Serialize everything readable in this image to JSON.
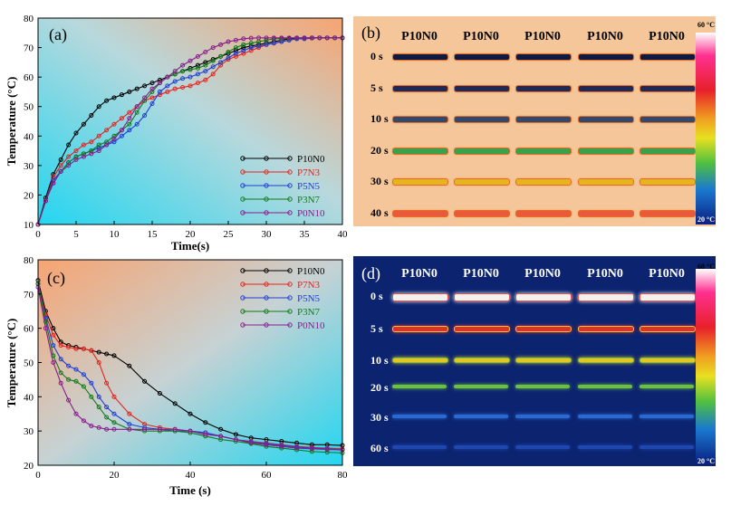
{
  "chart_data": [
    {
      "type": "line",
      "panel_label": "(a)",
      "xlabel": "Time(s)",
      "ylabel": "Temperature (°C)",
      "xlim": [
        0,
        40
      ],
      "ylim": [
        10,
        80
      ],
      "xticks": [
        0,
        5,
        10,
        15,
        20,
        25,
        30,
        35,
        40
      ],
      "yticks": [
        10,
        20,
        30,
        40,
        50,
        60,
        70,
        80
      ],
      "legend_position": "lower-right",
      "background": "gradient cyan (bottom-left) to orange (top-right)",
      "series": [
        {
          "name": "P10N0",
          "color": "#000000",
          "x": [
            0,
            1,
            2,
            3,
            4,
            5,
            6,
            7,
            8,
            9,
            10,
            11,
            12,
            13,
            14,
            15,
            16,
            17,
            18,
            19,
            20,
            21,
            22,
            23,
            24,
            25,
            26,
            27,
            28,
            29,
            30,
            31,
            32,
            33,
            34,
            35,
            36,
            37,
            38,
            39,
            40
          ],
          "y": [
            10,
            19,
            27,
            32,
            37,
            41,
            44,
            47,
            50,
            52,
            53,
            54,
            55,
            56,
            57,
            58,
            59,
            60,
            61,
            62,
            63,
            64,
            65,
            66,
            67,
            68,
            69,
            70,
            70.5,
            71,
            71.5,
            72,
            72.5,
            73,
            73,
            73.2,
            73.3,
            73.3,
            73.3,
            73.3,
            73.3
          ]
        },
        {
          "name": "P7N3",
          "color": "#e8221b",
          "x": [
            0,
            1,
            2,
            3,
            4,
            5,
            6,
            7,
            8,
            9,
            10,
            11,
            12,
            13,
            14,
            15,
            16,
            17,
            18,
            19,
            20,
            21,
            22,
            23,
            24,
            25,
            26,
            27,
            28,
            29,
            30,
            31,
            32,
            33,
            34,
            35,
            36,
            37,
            38,
            39,
            40
          ],
          "y": [
            10,
            18,
            26,
            30,
            33,
            35,
            37,
            38,
            40,
            42,
            44,
            46,
            48,
            50,
            52,
            53,
            54,
            55,
            56,
            56.5,
            57,
            58,
            59,
            61,
            64,
            66,
            67,
            68,
            69,
            70,
            71,
            71.5,
            72,
            72.5,
            73,
            73,
            73.2,
            73.3,
            73.3,
            73.3,
            73.3
          ]
        },
        {
          "name": "P5N5",
          "color": "#1f3fd1",
          "x": [
            0,
            1,
            2,
            3,
            4,
            5,
            6,
            7,
            8,
            9,
            10,
            11,
            12,
            13,
            14,
            15,
            16,
            17,
            18,
            19,
            20,
            21,
            22,
            23,
            24,
            25,
            26,
            27,
            28,
            29,
            30,
            31,
            32,
            33,
            34,
            35,
            36,
            37,
            38,
            39,
            40
          ],
          "y": [
            10,
            18,
            25,
            28,
            31,
            33,
            34,
            35,
            36,
            37,
            38,
            40,
            42,
            44,
            47,
            51,
            55,
            57,
            58.5,
            59.5,
            60,
            61,
            62,
            63.5,
            65,
            66.5,
            68,
            69,
            70,
            70.5,
            71,
            71.5,
            72,
            72.5,
            73,
            73,
            73.2,
            73.3,
            73.3,
            73.3,
            73.3
          ]
        },
        {
          "name": "P3N7",
          "color": "#137a1b",
          "x": [
            0,
            1,
            2,
            3,
            4,
            5,
            6,
            7,
            8,
            9,
            10,
            11,
            12,
            13,
            14,
            15,
            16,
            17,
            18,
            19,
            20,
            21,
            22,
            23,
            24,
            25,
            26,
            27,
            28,
            29,
            30,
            31,
            32,
            33,
            34,
            35,
            36,
            37,
            38,
            39,
            40
          ],
          "y": [
            10,
            18,
            24,
            28,
            31,
            33,
            34,
            35,
            37,
            38,
            40,
            42,
            44,
            48,
            52,
            55,
            58,
            60,
            61,
            62,
            62.5,
            63,
            64,
            65.5,
            67,
            68.5,
            70,
            71,
            71.5,
            72,
            72.5,
            73,
            73,
            73.2,
            73.3,
            73.3,
            73.3,
            73.3,
            73.3,
            73.3,
            73.3
          ]
        },
        {
          "name": "P0N10",
          "color": "#8a1c8c",
          "x": [
            0,
            1,
            2,
            3,
            4,
            5,
            6,
            7,
            8,
            9,
            10,
            11,
            12,
            13,
            14,
            15,
            16,
            17,
            18,
            19,
            20,
            21,
            22,
            23,
            24,
            25,
            26,
            27,
            28,
            29,
            30,
            31,
            32,
            33,
            34,
            35,
            36,
            37,
            38,
            39,
            40
          ],
          "y": [
            10,
            18,
            24,
            28,
            30,
            32,
            33,
            34,
            35,
            37,
            39,
            42,
            46,
            50,
            53,
            56,
            58,
            60,
            62,
            64,
            65.5,
            67,
            68.5,
            70,
            71,
            72,
            72.5,
            73,
            73.2,
            73.3,
            73.3,
            73.3,
            73.3,
            73.3,
            73.3,
            73.3,
            73.3,
            73.3,
            73.3,
            73.3,
            73.3
          ]
        }
      ]
    },
    {
      "type": "line",
      "panel_label": "(c)",
      "xlabel": "Time (s)",
      "ylabel": "Temperature (°C)",
      "xlim": [
        0,
        80
      ],
      "ylim": [
        20,
        80
      ],
      "xticks": [
        0,
        20,
        40,
        60,
        80
      ],
      "yticks": [
        20,
        30,
        40,
        50,
        60,
        70,
        80
      ],
      "legend_position": "top-right",
      "background": "gradient orange (top-left) to cyan (bottom-right)",
      "series": [
        {
          "name": "P10N0",
          "color": "#000000",
          "x": [
            0,
            2,
            4,
            6,
            8,
            10,
            12,
            14,
            16,
            18,
            20,
            24,
            28,
            32,
            36,
            40,
            44,
            48,
            52,
            56,
            60,
            64,
            68,
            72,
            76,
            80
          ],
          "y": [
            74,
            65,
            60,
            56,
            55,
            54.5,
            54,
            53.5,
            53,
            52.5,
            52,
            49,
            44.5,
            41,
            38,
            35,
            32.5,
            30.5,
            29,
            28,
            27.5,
            27,
            26.5,
            26,
            26,
            25.8
          ]
        },
        {
          "name": "P7N3",
          "color": "#e8221b",
          "x": [
            0,
            2,
            4,
            6,
            8,
            10,
            12,
            14,
            16,
            18,
            20,
            24,
            28,
            32,
            36,
            40,
            44,
            48,
            52,
            56,
            60,
            64,
            68,
            72,
            76,
            80
          ],
          "y": [
            73,
            64,
            58,
            55,
            54.5,
            54,
            54,
            53.5,
            50,
            44,
            40,
            35,
            32,
            31,
            30.5,
            30,
            29.5,
            28.5,
            27.5,
            27,
            26.5,
            26,
            25.5,
            25.2,
            25,
            24.8
          ]
        },
        {
          "name": "P5N5",
          "color": "#1f3fd1",
          "x": [
            0,
            2,
            4,
            6,
            8,
            10,
            12,
            14,
            16,
            18,
            20,
            24,
            28,
            32,
            36,
            40,
            44,
            48,
            52,
            56,
            60,
            64,
            68,
            72,
            76,
            80
          ],
          "y": [
            73,
            63,
            55,
            51,
            49,
            48,
            46.5,
            44,
            40,
            37,
            35,
            32,
            31,
            30.5,
            30,
            30,
            29.5,
            28.5,
            27.5,
            26.8,
            26.3,
            25.8,
            25.3,
            25,
            24.8,
            24.5
          ]
        },
        {
          "name": "P3N7",
          "color": "#137a1b",
          "x": [
            0,
            2,
            4,
            6,
            8,
            10,
            12,
            14,
            16,
            18,
            20,
            24,
            28,
            32,
            36,
            40,
            44,
            48,
            52,
            56,
            60,
            64,
            68,
            72,
            76,
            80
          ],
          "y": [
            73,
            62,
            52,
            47,
            45,
            44.5,
            43,
            40,
            37,
            34,
            32.5,
            30.5,
            30,
            30,
            30,
            29.5,
            28.5,
            27.5,
            27,
            26.3,
            25.5,
            25,
            24.5,
            24,
            23.8,
            23.6
          ]
        },
        {
          "name": "P0N10",
          "color": "#8a1c8c",
          "x": [
            0,
            2,
            4,
            6,
            8,
            10,
            12,
            14,
            16,
            18,
            20,
            24,
            28,
            32,
            36,
            40,
            44,
            48,
            52,
            56,
            60,
            64,
            68,
            72,
            76,
            80
          ],
          "y": [
            72,
            60,
            50,
            44,
            39,
            35,
            33,
            31.5,
            31,
            30.5,
            30.5,
            30.5,
            30.5,
            30.5,
            30.5,
            30,
            29,
            28.5,
            27.5,
            26.5,
            26,
            25.5,
            25,
            24.8,
            24.6,
            24.5
          ]
        }
      ]
    }
  ],
  "panel_b": {
    "label": "(b)",
    "columns": [
      "P10N0",
      "P10N0",
      "P10N0",
      "P10N0",
      "P10N0"
    ],
    "rows": [
      "0 s",
      "5 s",
      "10 s",
      "20 s",
      "30 s",
      "40 s"
    ],
    "colorbar_max": "60 °C",
    "colorbar_min": "20 °C",
    "background_color": "#f4c69a"
  },
  "panel_d": {
    "label": "(d)",
    "columns": [
      "P10N0",
      "P10N0",
      "P10N0",
      "P10N0",
      "P10N0"
    ],
    "rows": [
      "0 s",
      "5 s",
      "10 s",
      "20 s",
      "30 s",
      "60 s"
    ],
    "colorbar_max": "60 °C",
    "colorbar_min": "20 °C",
    "background_color": "#0c2470"
  }
}
